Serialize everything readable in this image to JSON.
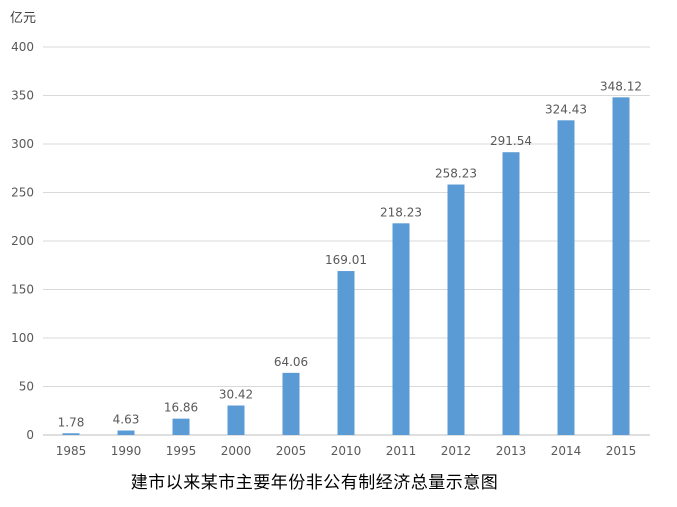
{
  "unit_label": "亿元",
  "caption": "建市以来某市主要年份非公有制经济总量示意图",
  "chart_data": {
    "type": "bar",
    "categories": [
      "1985",
      "1990",
      "1995",
      "2000",
      "2005",
      "2010",
      "2011",
      "2012",
      "2013",
      "2014",
      "2015"
    ],
    "values": [
      1.78,
      4.63,
      16.86,
      30.42,
      64.06,
      169.01,
      218.23,
      258.23,
      291.54,
      324.43,
      348.12
    ],
    "value_labels": [
      "1.78",
      "4.63",
      "16.86",
      "30.42",
      "64.06",
      "169.01",
      "218.23",
      "258.23",
      "291.54",
      "324.43",
      "348.12"
    ],
    "ylabel": "亿元",
    "ylim": [
      0,
      400
    ],
    "yticks": [
      0,
      50,
      100,
      150,
      200,
      250,
      300,
      350,
      400
    ],
    "grid": true,
    "legend": "none",
    "bar_color": "#5b9bd5"
  }
}
